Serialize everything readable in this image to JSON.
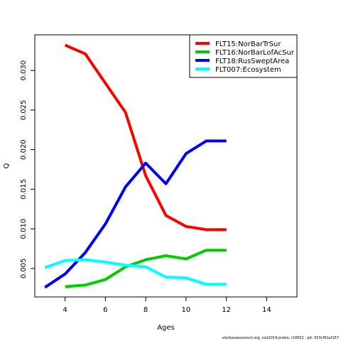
{
  "chart_data": {
    "type": "line",
    "title": "",
    "xlabel": "Ages",
    "ylabel": "Q",
    "xlim": [
      2.5,
      15.5
    ],
    "ylim": [
      0.0014,
      0.0345
    ],
    "x_ticks": [
      4,
      6,
      8,
      10,
      12,
      14
    ],
    "y_ticks": [
      0.005,
      0.01,
      0.015,
      0.02,
      0.025,
      0.03
    ],
    "y_tick_labels": [
      "0.005",
      "0.010",
      "0.015",
      "0.020",
      "0.025",
      "0.030"
    ],
    "grid": false,
    "legend_position": "top-right",
    "series": [
      {
        "name": "FLT15:NorBarTrSur",
        "color": "#ff0000",
        "x": [
          4,
          5,
          6,
          7,
          8,
          9,
          10,
          11,
          12
        ],
        "y": [
          0.0332,
          0.0321,
          0.0284,
          0.0247,
          0.0167,
          0.0117,
          0.0103,
          0.0099,
          0.0099
        ]
      },
      {
        "name": "FLT16:NorBarLofAcSur",
        "color": "#00cd00",
        "x": [
          4,
          5,
          6,
          7,
          8,
          9,
          10,
          11,
          12
        ],
        "y": [
          0.0027,
          0.0029,
          0.0036,
          0.0052,
          0.0061,
          0.0066,
          0.0062,
          0.0073,
          0.0073
        ]
      },
      {
        "name": "FLT18:RusSweptArea",
        "color": "#0000ff",
        "x": [
          3,
          4,
          5,
          6,
          7,
          8,
          9,
          10,
          11,
          12
        ],
        "y": [
          0.0026,
          0.0043,
          0.007,
          0.0106,
          0.0153,
          0.0183,
          0.0157,
          0.0195,
          0.0211,
          0.0211
        ]
      },
      {
        "name": "FLT007:Ecosystem",
        "color": "#00ffff",
        "x": [
          3,
          4,
          5,
          6,
          7,
          8,
          9,
          10,
          11,
          12
        ],
        "y": [
          0.0051,
          0.006,
          0.0061,
          0.0058,
          0.0054,
          0.0052,
          0.0039,
          0.0038,
          0.003,
          0.003
        ]
      }
    ]
  },
  "footer": "stockassessment.org,  cod2019-proba,  r10652 ,  git:  503cf91af157"
}
